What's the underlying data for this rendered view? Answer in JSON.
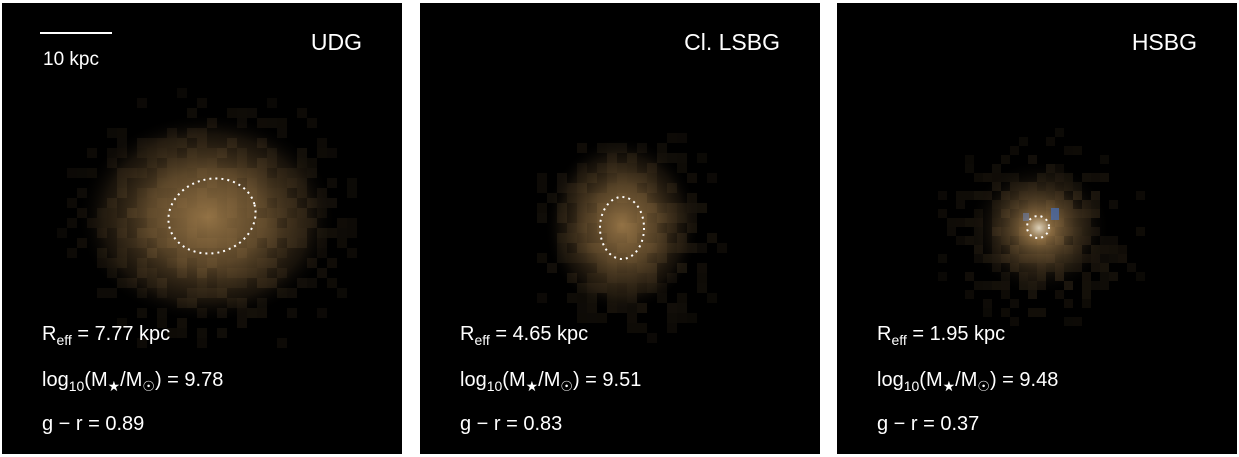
{
  "scale_bar": {
    "label": "10 kpc"
  },
  "r_symbol": "R",
  "r_sub": "eff",
  "r_eq": " = ",
  "r_unit": " kpc",
  "log_prefix": "log",
  "log_sub": "10",
  "log_open": "(M",
  "log_star": "★",
  "log_slash": "/M",
  "log_sun": "☉",
  "log_close": ") = ",
  "color_prefix": "g − r = ",
  "galaxy_color": "#a6814e",
  "panels": [
    {
      "label": "UDG",
      "r_eff": "7.77",
      "log_mass": "9.78",
      "g_minus_r": "0.89"
    },
    {
      "label": "Cl. LSBG",
      "r_eff": "4.65",
      "log_mass": "9.51",
      "g_minus_r": "0.83"
    },
    {
      "label": "HSBG",
      "r_eff": "1.95",
      "log_mass": "9.48",
      "g_minus_r": "0.37"
    }
  ]
}
